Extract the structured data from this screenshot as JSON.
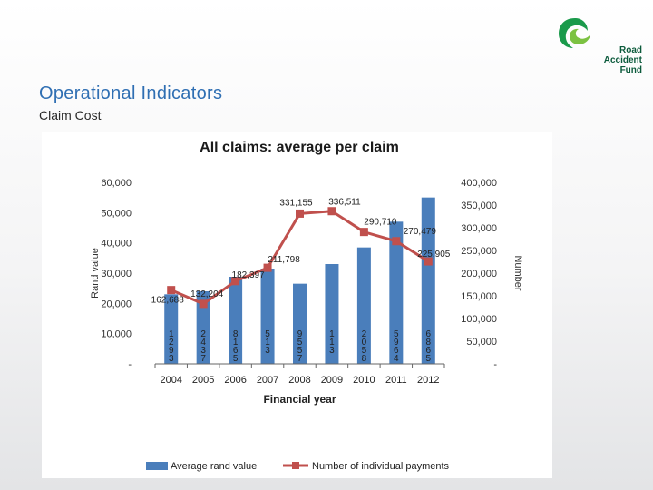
{
  "slide": {
    "title": "Operational Indicators",
    "subtitle": "Claim Cost",
    "logo": {
      "line1": "Road",
      "line2": "Accident",
      "line3": "Fund",
      "colors": [
        "#1a9a4b",
        "#7cc242",
        "#0b5a3b"
      ]
    }
  },
  "chart_data": {
    "type": "bar",
    "title": "All claims: average per claim",
    "xlabel": "Financial year",
    "ylabel_left": "Rand value",
    "ylabel_right": "Number",
    "categories": [
      "2004",
      "2005",
      "2006",
      "2007",
      "2008",
      "2009",
      "2010",
      "2011",
      "2012"
    ],
    "left_axis": {
      "min": 0,
      "max": 60000,
      "ticks": [
        "-",
        "10,000",
        "20,000",
        "30,000",
        "40,000",
        "50,000",
        "60,000"
      ]
    },
    "right_axis": {
      "min": 0,
      "max": 400000,
      "ticks": [
        "-",
        "50,000",
        "100,000",
        "150,000",
        "200,000",
        "250,000",
        "300,000",
        "350,000",
        "400,000"
      ]
    },
    "series": [
      {
        "name": "Average rand value",
        "type": "bar",
        "axis": "left",
        "color": "#4a7ebb",
        "values": [
          23000,
          24000,
          28800,
          31500,
          26500,
          33000,
          38500,
          47000,
          55000
        ],
        "value_labels": [
          "1\n2\n9\n3",
          "2\n4\n3\n7",
          "8\n1\n6\n5",
          "5\n1\n3",
          "9\n5\n5\n7",
          "1\n1\n3",
          "2\n0\n5\n8",
          "5\n9\n6\n4",
          "6\n8\n6\n5"
        ]
      },
      {
        "name": "Number of individual payments",
        "type": "line",
        "axis": "right",
        "color": "#c0504d",
        "values": [
          162688,
          132204,
          182397,
          211798,
          331155,
          336511,
          290710,
          270479,
          225905
        ],
        "labels": [
          "162,688",
          "132,204",
          "182,397",
          "211,798",
          "331,155",
          "336,511",
          "290,710",
          "270,479",
          "225,905"
        ]
      }
    ],
    "legend_position": "bottom",
    "grid": false
  }
}
